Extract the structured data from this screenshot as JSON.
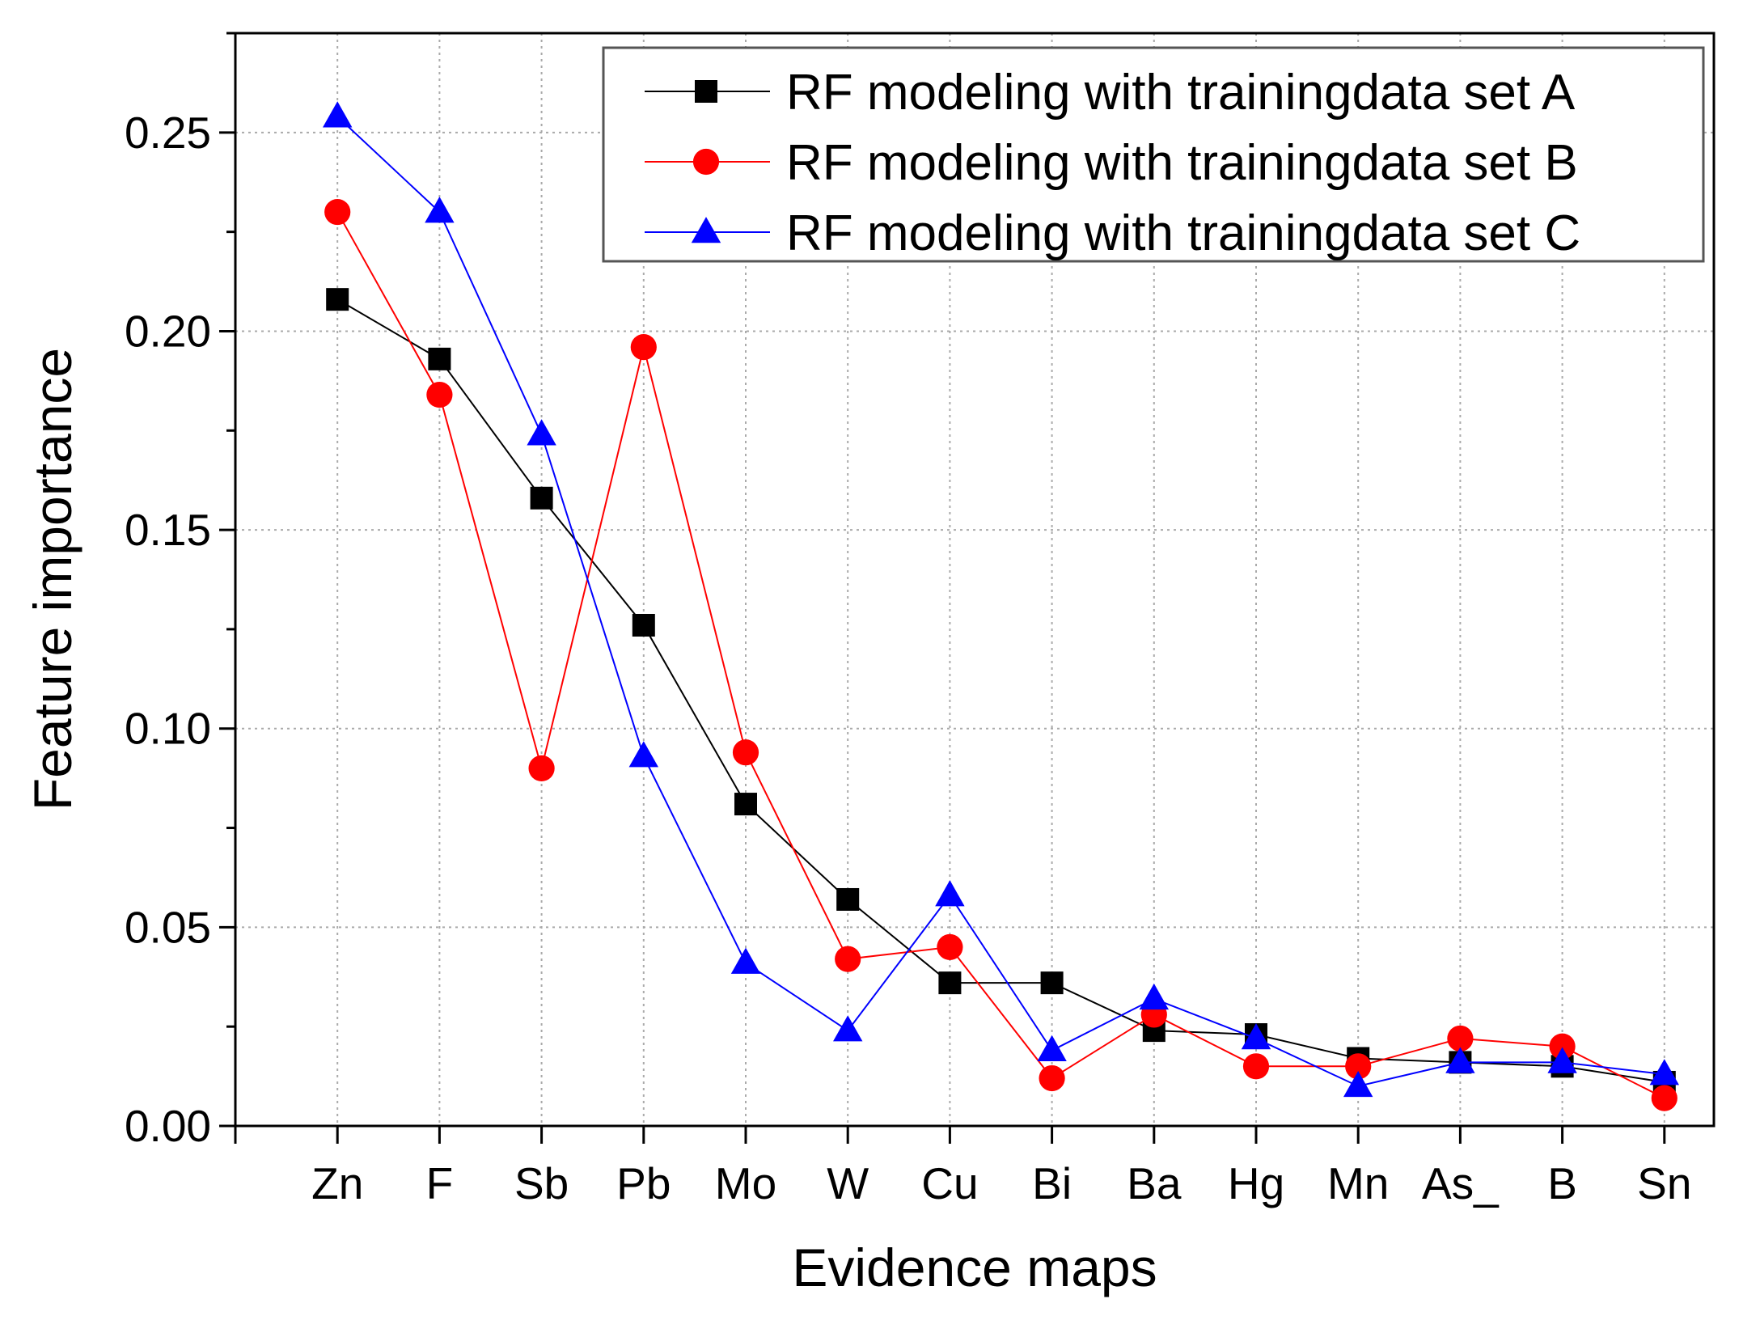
{
  "chart_data": {
    "type": "line",
    "title": "",
    "xlabel": "Evidence maps",
    "ylabel": "Feature importance",
    "categories": [
      "Zn",
      "F",
      "Sb",
      "Pb",
      "Mo",
      "W",
      "Cu",
      "Bi",
      "Ba",
      "Hg",
      "Mn",
      "As_",
      "B",
      "Sn"
    ],
    "ylim": [
      0,
      0.275
    ],
    "yticks": [
      "0.00",
      "0.05",
      "0.10",
      "0.15",
      "0.20",
      "0.25"
    ],
    "grid": true,
    "legend_position": "top-right",
    "series": [
      {
        "name": "RF modeling with trainingdata set A",
        "color": "#000000",
        "marker": "square",
        "values": [
          0.208,
          0.193,
          0.158,
          0.126,
          0.081,
          0.057,
          0.036,
          0.036,
          0.024,
          0.023,
          0.017,
          0.016,
          0.015,
          0.011
        ]
      },
      {
        "name": "RF modeling with trainingdata set B",
        "color": "#ff0000",
        "marker": "circle",
        "values": [
          0.23,
          0.184,
          0.09,
          0.196,
          0.094,
          0.042,
          0.045,
          0.012,
          0.028,
          0.015,
          0.015,
          0.022,
          0.02,
          0.007
        ]
      },
      {
        "name": "RF modeling with trainingdata set C",
        "color": "#0000ff",
        "marker": "triangle",
        "values": [
          0.254,
          0.23,
          0.174,
          0.093,
          0.041,
          0.024,
          0.058,
          0.019,
          0.032,
          0.022,
          0.01,
          0.016,
          0.016,
          0.013
        ]
      }
    ]
  }
}
